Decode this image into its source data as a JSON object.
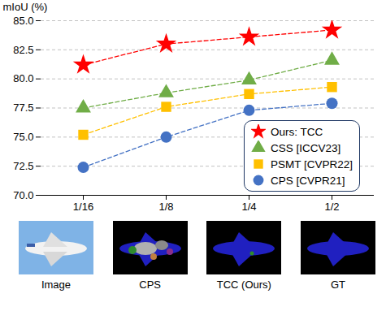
{
  "chart_data": {
    "type": "line",
    "y_label": "mIoU (%)",
    "categories": [
      "1/16",
      "1/8",
      "1/4",
      "1/2"
    ],
    "ylim": [
      70,
      85
    ],
    "yticks": [
      {
        "value": 70,
        "label": "70.0"
      },
      {
        "value": 72.5,
        "label": "72.5"
      },
      {
        "value": 75,
        "label": "75.0"
      },
      {
        "value": 77.5,
        "label": "77.5"
      },
      {
        "value": 80,
        "label": "80.0"
      },
      {
        "value": 82.5,
        "label": "82.5"
      },
      {
        "value": 85,
        "label": "85.0"
      }
    ],
    "grid": true,
    "legend": "bottom-right",
    "series": [
      {
        "name": "Ours: TCC",
        "color": "#ff0000",
        "marker": "star",
        "line_style": "dashed",
        "values": [
          81.2,
          83.0,
          83.6,
          84.2
        ]
      },
      {
        "name": "CSS [ICCV23]",
        "color": "#70ad47",
        "marker": "triangle",
        "line_style": "dashed",
        "values": [
          77.5,
          78.8,
          79.9,
          81.6
        ]
      },
      {
        "name": "PSMT [CVPR22]",
        "color": "#ffc000",
        "marker": "square",
        "line_style": "dashed",
        "values": [
          75.2,
          77.6,
          78.7,
          79.3
        ]
      },
      {
        "name": "CPS [CVPR21]",
        "color": "#4472c4",
        "marker": "circle",
        "line_style": "dashed",
        "values": [
          72.4,
          75.0,
          77.3,
          77.9
        ]
      }
    ]
  },
  "panels": [
    "Image",
    "CPS",
    "TCC (Ours)",
    "GT"
  ]
}
